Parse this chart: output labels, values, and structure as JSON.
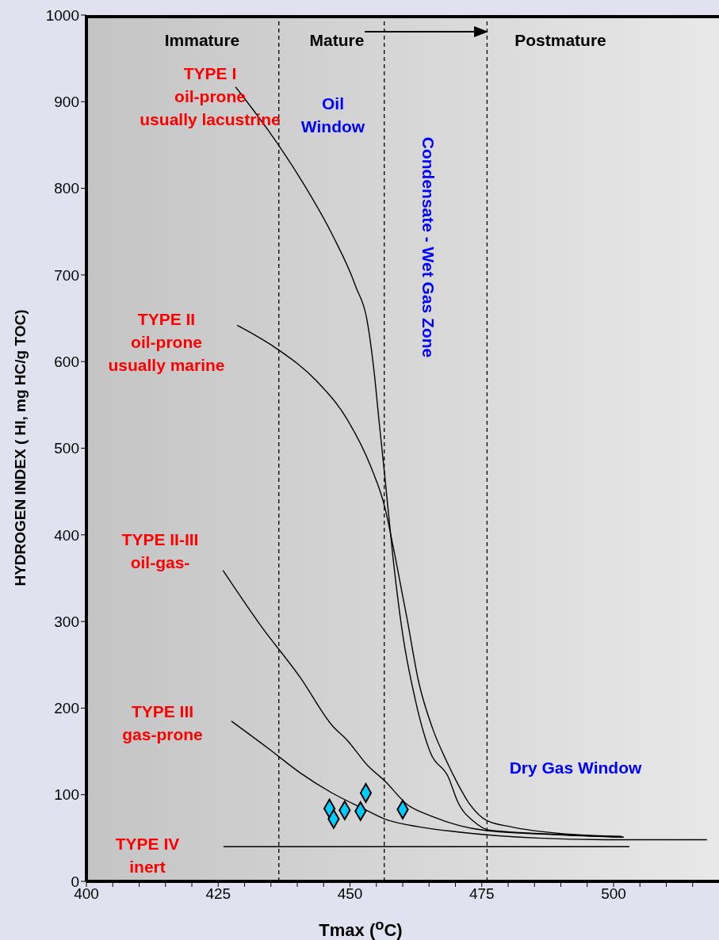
{
  "chart_data": {
    "type": "line",
    "xlabel": "Tmax ($^{o}$C)",
    "ylabel": "HYDROGEN INDEX ( HI, mg HC/g TOC)",
    "xlim": [
      400,
      520
    ],
    "ylim": [
      0,
      1000
    ],
    "xticks": [
      400,
      {
        "value": 405,
        "label": null
      },
      {
        "value": 410,
        "label": null
      },
      {
        "value": 415,
        "label": null
      },
      {
        "value": 420,
        "label": null
      },
      425,
      {
        "value": 430,
        "label": null
      },
      {
        "value": 435,
        "label": null
      },
      {
        "value": 440,
        "label": null
      },
      {
        "value": 445,
        "label": null
      },
      450,
      {
        "value": 455,
        "label": null
      },
      {
        "value": 460,
        "label": null
      },
      {
        "value": 465,
        "label": null
      },
      {
        "value": 470,
        "label": null
      },
      475,
      {
        "value": 480,
        "label": null
      },
      {
        "value": 485,
        "label": null
      },
      {
        "value": 490,
        "label": null
      },
      {
        "value": 495,
        "label": null
      },
      500,
      {
        "value": 505,
        "label": null
      },
      {
        "value": 510,
        "label": null
      },
      {
        "value": 515,
        "label": null
      }
    ],
    "yticks": [
      0,
      100,
      200,
      300,
      400,
      500,
      600,
      700,
      800,
      900,
      1000
    ],
    "grid": false,
    "legend": false,
    "line_style": "solid",
    "series": [
      {
        "color": "#000000",
        "x": [
          428.3,
          434.6,
          440.6,
          446.6,
          451.0,
          453.4,
          454.6,
          455.5,
          456.6,
          458.1,
          460.0,
          462.3,
          465.3,
          468.6,
          470.5,
          473.5,
          476.5,
          490.4,
          501.9
        ],
        "values": [
          917,
          866,
          811,
          747,
          688,
          642,
          587,
          532,
          468,
          377,
          285,
          212,
          148,
          121,
          91,
          69,
          59,
          54,
          51
        ]
      },
      {
        "color": "#000000",
        "x": [
          428.6,
          436.1,
          443.6,
          449.6,
          454.0,
          456.6,
          458.5,
          460.8,
          463.0,
          465.7,
          468.3,
          470.5,
          472.5,
          476.0,
          480.5,
          490.4,
          501.5
        ],
        "values": [
          642,
          615,
          578,
          532,
          478,
          432,
          377,
          304,
          231,
          176,
          139,
          112,
          91,
          70,
          63,
          55,
          52
        ]
      },
      {
        "color": "#000000",
        "x": [
          425.9,
          433.1,
          440.6,
          446.6,
          449.6,
          453.3,
          456.6,
          460.8,
          465.6,
          475.4,
          488.5,
          501.9
        ],
        "values": [
          359,
          295,
          235,
          180,
          162,
          134,
          116,
          89,
          75,
          59,
          54,
          51
        ]
      },
      {
        "color": "#000000",
        "x": [
          427.5,
          434.6,
          440.6,
          446.6,
          452.5,
          456.6,
          463.0,
          470.5,
          485.5,
          500.4,
          517.7
        ],
        "values": [
          185,
          153,
          125,
          102,
          84,
          72,
          63,
          57,
          50,
          48,
          48
        ]
      },
      {
        "color": "#000000",
        "x": [
          426,
          503
        ],
        "values": [
          40,
          40
        ]
      },
      {
        "type": "scatter",
        "marker": "diamond",
        "color": "#00ccff",
        "x": [
          446.1,
          446.9,
          449.0,
          452.0,
          453.0,
          460.0
        ],
        "values": [
          84,
          72,
          82,
          81,
          102,
          83
        ]
      }
    ],
    "ref_lines": [
      {
        "axis": "x",
        "value": 436.5,
        "color": "#000000",
        "line_style": "dashed"
      },
      {
        "axis": "x",
        "value": 456.5,
        "color": "#000000",
        "line_style": "dashed"
      },
      {
        "axis": "x",
        "value": 476,
        "color": "#000000",
        "line_style": "dashed"
      }
    ],
    "annotations": [
      "Immature",
      "Mature",
      "Postmature",
      "TYPE I\noil-prone\nusually lacustrine",
      "TYPE II\noil-prone\nusually marine",
      "TYPE II-III\noil-gas-",
      "TYPE III\ngas-prone",
      "TYPE IV\ninert",
      "Oil\nWindow",
      "Condensate - Wet Gas Zone",
      "Dry Gas Window"
    ]
  }
}
